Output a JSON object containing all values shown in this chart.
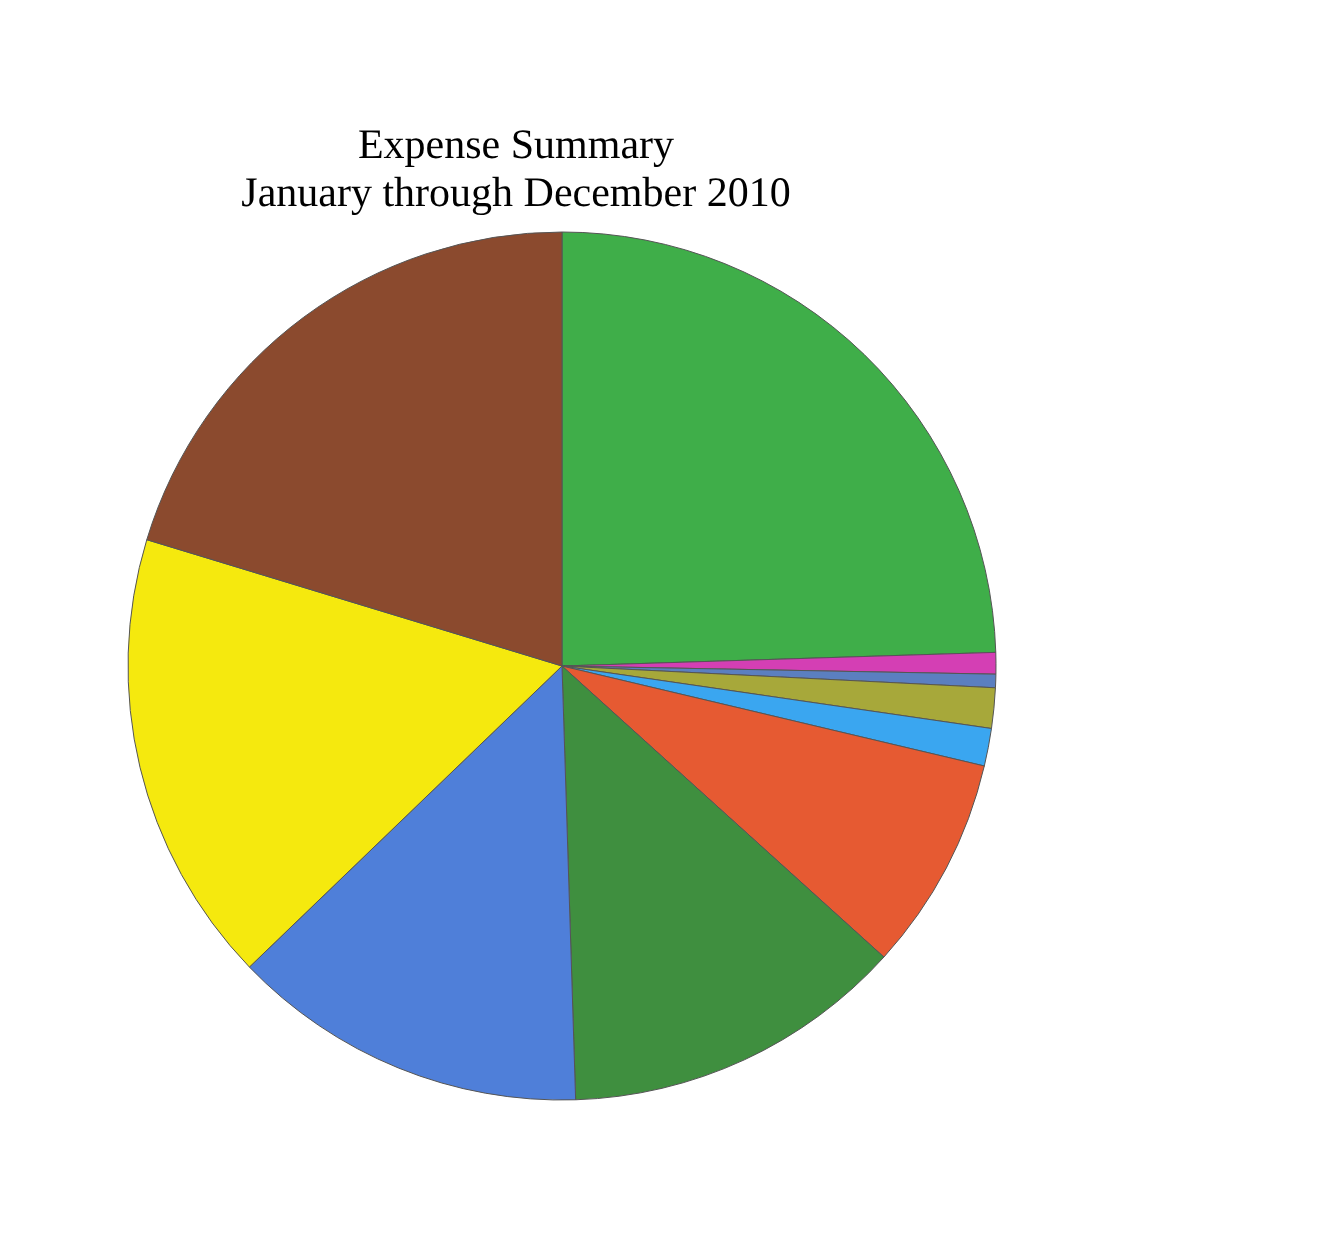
{
  "chart_data": {
    "type": "pie",
    "title": "Expense Summary\nJanuary through December 2010",
    "categories": [
      null,
      null,
      null,
      null,
      null,
      null,
      null,
      null,
      null,
      null
    ],
    "values": [
      24.5,
      0.8,
      0.5,
      1.5,
      1.4,
      8,
      12.8,
      13.3,
      16.9,
      20.3
    ],
    "colors": [
      "#3fae49",
      "#d43fb4",
      "#5b7fc0",
      "#a7a83a",
      "#3aa6f0",
      "#e65a32",
      "#3f8f3f",
      "#4f7fd9",
      "#f5e90e",
      "#8b4a2e"
    ],
    "legend": false
  }
}
